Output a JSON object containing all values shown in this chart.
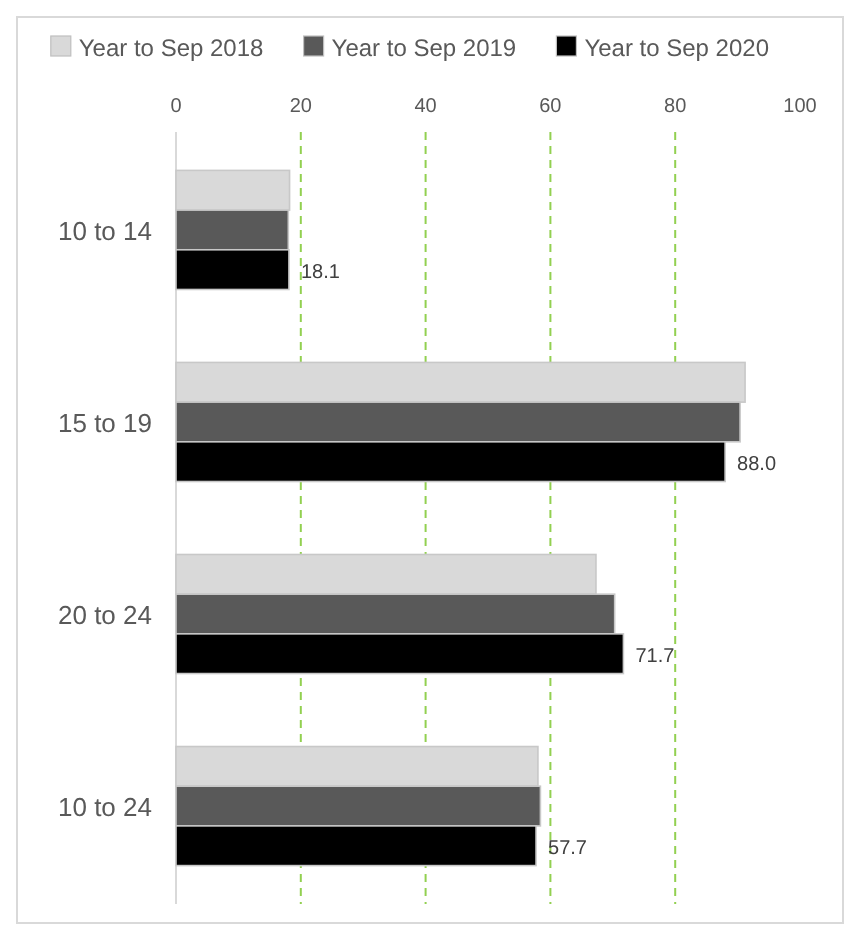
{
  "chart_data": {
    "type": "bar",
    "orientation": "horizontal",
    "categories": [
      "10 to 14",
      "15 to 19",
      "20 to 24",
      "10 to 24"
    ],
    "series": [
      {
        "name": "Year to Sep 2018",
        "color": "#d9d9d9",
        "values": [
          18.2,
          91.2,
          67.3,
          58.0
        ]
      },
      {
        "name": "Year to Sep 2019",
        "color": "#595959",
        "values": [
          18.0,
          90.4,
          70.3,
          58.4
        ]
      },
      {
        "name": "Year to Sep 2020",
        "color": "#000000",
        "values": [
          18.1,
          88.0,
          71.7,
          57.7
        ],
        "value_labels": [
          "18.1",
          "88.0",
          "71.7",
          "57.7"
        ]
      }
    ],
    "xlim": [
      0,
      100
    ],
    "xticks": [
      0,
      20,
      40,
      60,
      80,
      100
    ],
    "grid": "x",
    "legend": "top"
  }
}
